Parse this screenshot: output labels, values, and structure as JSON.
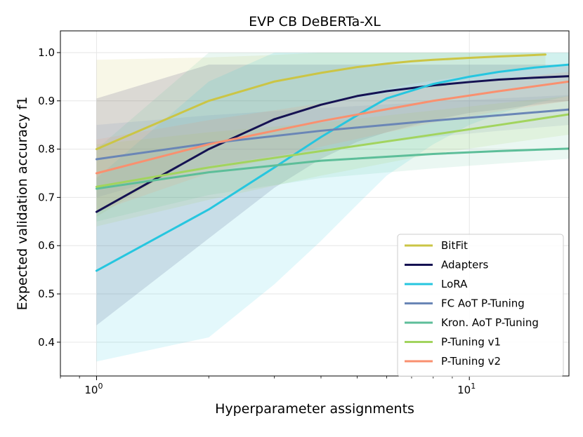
{
  "chart_data": {
    "type": "line",
    "title": "EVP CB DeBERTa-XL",
    "xlabel": "Hyperparameter assignments",
    "ylabel": "Expected validation accuracy f1",
    "xscale": "log",
    "xlim": [
      0.8,
      18.5
    ],
    "ylim": [
      0.33,
      1.045
    ],
    "x_ticks": [
      {
        "value": 1,
        "base": "10",
        "exp": "0"
      },
      {
        "value": 10,
        "base": "10",
        "exp": "1"
      }
    ],
    "y_ticks": [
      {
        "value": 0.4,
        "label": "0.4"
      },
      {
        "value": 0.5,
        "label": "0.5"
      },
      {
        "value": 0.6,
        "label": "0.6"
      },
      {
        "value": 0.7,
        "label": "0.7"
      },
      {
        "value": 0.8,
        "label": "0.8"
      },
      {
        "value": 0.9,
        "label": "0.9"
      },
      {
        "value": 1.0,
        "label": "1.0"
      }
    ],
    "grid": true,
    "legend_position": "lower-right",
    "series": [
      {
        "name": "BitFit",
        "color": "#CBC545",
        "x": [
          1,
          2,
          3,
          4,
          5,
          6,
          7,
          8,
          10,
          12,
          14,
          16
        ],
        "y": [
          0.8,
          0.9,
          0.94,
          0.958,
          0.97,
          0.977,
          0.982,
          0.985,
          0.989,
          0.992,
          0.994,
          0.996
        ],
        "lower": [
          0.66,
          0.8,
          0.86,
          0.89,
          0.91,
          0.925,
          0.935,
          0.942,
          0.952,
          0.96,
          0.965,
          0.97
        ],
        "upper": [
          0.985,
          0.99,
          0.995,
          1.0,
          1.0,
          1.0,
          1.0,
          1.0,
          1.0,
          1.0,
          1.0,
          1.0
        ]
      },
      {
        "name": "Adapters",
        "color": "#151252",
        "x": [
          1,
          2,
          3,
          4,
          5,
          6,
          8,
          10,
          12,
          15,
          18.5
        ],
        "y": [
          0.67,
          0.8,
          0.862,
          0.892,
          0.91,
          0.92,
          0.932,
          0.939,
          0.944,
          0.948,
          0.951
        ],
        "lower": [
          0.435,
          0.615,
          0.72,
          0.78,
          0.815,
          0.835,
          0.86,
          0.875,
          0.882,
          0.892,
          0.9
        ],
        "upper": [
          0.905,
          0.975,
          0.975,
          0.975,
          0.975,
          0.975,
          0.975,
          0.975,
          0.975,
          0.975,
          0.975
        ]
      },
      {
        "name": "LoRA",
        "color": "#26C6DF",
        "x": [
          1,
          2,
          3,
          4,
          5,
          6,
          8,
          10,
          12,
          15,
          18.5
        ],
        "y": [
          0.548,
          0.675,
          0.762,
          0.825,
          0.87,
          0.905,
          0.935,
          0.95,
          0.96,
          0.969,
          0.975
        ],
        "lower": [
          0.36,
          0.41,
          0.52,
          0.61,
          0.685,
          0.745,
          0.81,
          0.85,
          0.873,
          0.895,
          0.91
        ],
        "upper": [
          0.74,
          0.94,
          1.0,
          1.0,
          1.0,
          1.0,
          1.0,
          1.0,
          1.0,
          1.0,
          1.0
        ]
      },
      {
        "name": "FC AoT P-Tuning",
        "color": "#6A86B6",
        "x": [
          1,
          2,
          4,
          8,
          12,
          18.5
        ],
        "y": [
          0.779,
          0.812,
          0.838,
          0.859,
          0.87,
          0.882
        ],
        "lower": [
          0.7,
          0.765,
          0.8,
          0.825,
          0.838,
          0.85
        ],
        "upper": [
          0.85,
          0.87,
          0.885,
          0.898,
          0.905,
          0.912
        ]
      },
      {
        "name": "Kron. AoT P-Tuning",
        "color": "#5DBE99",
        "x": [
          1,
          2,
          4,
          8,
          12,
          18.5
        ],
        "y": [
          0.718,
          0.752,
          0.776,
          0.79,
          0.796,
          0.801
        ],
        "lower": [
          0.65,
          0.705,
          0.74,
          0.76,
          0.77,
          0.78
        ],
        "upper": [
          0.8,
          1.0,
          1.0,
          1.0,
          1.0,
          1.0
        ]
      },
      {
        "name": "P-Tuning v1",
        "color": "#A2D45E",
        "x": [
          1,
          2,
          4,
          8,
          12,
          18.5
        ],
        "y": [
          0.722,
          0.762,
          0.796,
          0.83,
          0.85,
          0.872
        ],
        "lower": [
          0.64,
          0.695,
          0.745,
          0.79,
          0.81,
          0.83
        ],
        "upper": [
          0.81,
          0.835,
          0.855,
          0.88,
          0.895,
          0.91
        ]
      },
      {
        "name": "P-Tuning v2",
        "color": "#F9906F",
        "x": [
          1,
          2,
          4,
          8,
          12,
          18.5
        ],
        "y": [
          0.75,
          0.81,
          0.858,
          0.9,
          0.92,
          0.94
        ],
        "lower": [
          0.67,
          0.75,
          0.805,
          0.855,
          0.878,
          0.9
        ],
        "upper": [
          0.82,
          0.86,
          0.895,
          0.93,
          0.945,
          0.96
        ]
      }
    ]
  }
}
